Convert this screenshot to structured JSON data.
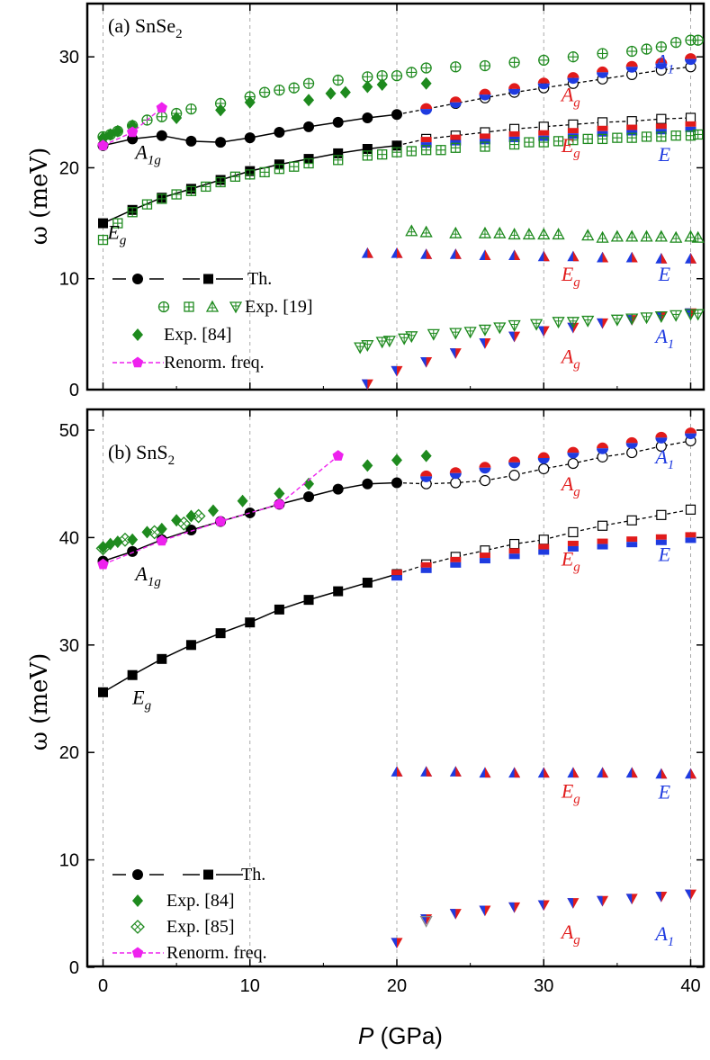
{
  "figure": {
    "x_axis_label_main": "P",
    "x_axis_label_unit": " (GPa)"
  },
  "chart_data": [
    {
      "type": "scatter",
      "title": "(a) SnSe",
      "title_sub": "2",
      "ylabel": "ω (meV)",
      "xlim": [
        -1,
        41
      ],
      "ylim": [
        0,
        35
      ],
      "xticks": [
        0,
        10,
        20,
        30,
        40
      ],
      "yticks": [
        0,
        10,
        20,
        30
      ],
      "grid": "vertical dashed at x=0,10,20,30,40",
      "legend": {
        "position": "lower-left",
        "entries": [
          {
            "label": "Th."
          },
          {
            "label": "Exp. [19]"
          },
          {
            "label": "Exp. [84]"
          },
          {
            "label": "Renorm. freq."
          }
        ]
      },
      "mode_labels": [
        {
          "text": "A",
          "sub": "1g",
          "x": 2.2,
          "y": 20.8,
          "color": "#000000"
        },
        {
          "text": "E",
          "sub": "g",
          "x": 0.3,
          "y": 13.6,
          "color": "#000000"
        },
        {
          "text": "A",
          "sub": "g",
          "x": 31.2,
          "y": 26.0,
          "color": "#e11b1b"
        },
        {
          "text": "A",
          "sub": "1",
          "x": 37.6,
          "y": 29.0,
          "color": "#1f3be0"
        },
        {
          "text": "E",
          "sub": "g",
          "x": 31.2,
          "y": 21.4,
          "color": "#e11b1b"
        },
        {
          "text": "E",
          "sub": "",
          "x": 37.8,
          "y": 20.6,
          "color": "#1f3be0"
        },
        {
          "text": "E",
          "sub": "g",
          "x": 31.2,
          "y": 9.8,
          "color": "#e11b1b"
        },
        {
          "text": "E",
          "sub": "",
          "x": 37.8,
          "y": 9.8,
          "color": "#1f3be0"
        },
        {
          "text": "A",
          "sub": "g",
          "x": 31.2,
          "y": 2.4,
          "color": "#e11b1b"
        },
        {
          "text": "A",
          "sub": "1",
          "x": 37.6,
          "y": 4.2,
          "color": "#1f3be0"
        }
      ],
      "series": [
        {
          "kind": "th_circle_solid",
          "x": [
            0,
            2,
            4,
            6,
            8,
            10,
            12,
            14,
            16,
            18,
            20
          ],
          "y": [
            22.0,
            22.6,
            22.9,
            22.4,
            22.3,
            22.7,
            23.2,
            23.7,
            24.1,
            24.5,
            24.8
          ]
        },
        {
          "kind": "th_square_solid",
          "x": [
            0,
            2,
            4,
            6,
            8,
            10,
            12,
            14,
            16,
            18,
            20
          ],
          "y": [
            15.0,
            16.2,
            17.3,
            18.1,
            18.9,
            19.7,
            20.3,
            20.8,
            21.3,
            21.7,
            22.0
          ]
        },
        {
          "kind": "th_circle_dashed",
          "x": [
            22,
            24,
            26,
            28,
            30,
            32,
            34,
            36,
            38,
            40
          ],
          "y": [
            25.3,
            25.8,
            26.3,
            26.8,
            27.2,
            27.6,
            28.0,
            28.4,
            28.8,
            29.1
          ]
        },
        {
          "kind": "th_square_dashed",
          "x": [
            22,
            24,
            26,
            28,
            30,
            32,
            34,
            36,
            38,
            40
          ],
          "y": [
            22.6,
            22.9,
            23.2,
            23.5,
            23.7,
            23.9,
            24.1,
            24.2,
            24.4,
            24.5
          ]
        },
        {
          "kind": "circle_rb",
          "x": [
            22,
            24,
            26,
            28,
            30,
            32,
            34,
            36,
            38,
            40
          ],
          "y": [
            25.3,
            25.9,
            26.6,
            27.1,
            27.6,
            28.1,
            28.6,
            29.1,
            29.4,
            29.8
          ]
        },
        {
          "kind": "square_rb",
          "x": [
            22,
            24,
            26,
            28,
            30,
            32,
            34,
            36,
            38,
            40
          ],
          "y": [
            22.3,
            22.5,
            22.6,
            22.8,
            22.9,
            23.1,
            23.3,
            23.4,
            23.5,
            23.7
          ]
        },
        {
          "kind": "tri_up_rb",
          "x": [
            18,
            20,
            22,
            24,
            26,
            28,
            30,
            32,
            34,
            36,
            38,
            40
          ],
          "y": [
            12.3,
            12.3,
            12.2,
            12.2,
            12.1,
            12.1,
            12.0,
            12.0,
            11.9,
            11.9,
            11.8,
            11.8
          ]
        },
        {
          "kind": "tri_down_rb",
          "x": [
            18,
            20,
            22,
            24,
            26,
            28,
            30,
            32,
            34,
            36,
            38,
            40
          ],
          "y": [
            0.5,
            1.7,
            2.5,
            3.3,
            4.2,
            4.8,
            5.3,
            5.6,
            6.0,
            6.3,
            6.6,
            6.9
          ]
        },
        {
          "kind": "exp19_circle",
          "x": [
            0,
            0.5,
            1,
            2,
            3,
            4,
            5,
            6,
            8,
            10,
            11,
            12,
            13,
            14,
            16,
            18,
            19,
            20,
            21,
            22,
            24,
            26,
            28,
            30,
            32,
            34,
            36,
            37,
            38,
            39,
            40,
            40.5
          ],
          "y": [
            22.8,
            23.0,
            23.3,
            23.8,
            24.3,
            24.6,
            24.9,
            25.3,
            25.8,
            26.4,
            26.8,
            27.0,
            27.2,
            27.6,
            27.9,
            28.2,
            28.3,
            28.3,
            28.6,
            29.0,
            29.1,
            29.2,
            29.5,
            29.7,
            30.0,
            30.3,
            30.5,
            30.7,
            30.9,
            31.3,
            31.5,
            31.5
          ]
        },
        {
          "kind": "exp19_square",
          "x": [
            0,
            1,
            2,
            3,
            4,
            5,
            6,
            7,
            8,
            9,
            10,
            11,
            12,
            13,
            14,
            16,
            18,
            19,
            20,
            21,
            22,
            23,
            24,
            26,
            28,
            29,
            30,
            31,
            32,
            33,
            34,
            35,
            36,
            37,
            38,
            39,
            40,
            40.5
          ],
          "y": [
            13.5,
            15.0,
            16.0,
            16.7,
            17.2,
            17.6,
            17.9,
            18.3,
            18.7,
            19.2,
            19.4,
            19.6,
            19.9,
            20.1,
            20.4,
            20.7,
            21.1,
            21.2,
            21.4,
            21.5,
            21.6,
            21.6,
            21.8,
            21.9,
            22.1,
            22.3,
            22.3,
            22.4,
            22.5,
            22.6,
            22.6,
            22.7,
            22.7,
            22.8,
            22.8,
            22.9,
            22.9,
            23.0
          ]
        },
        {
          "kind": "exp19_tri_up",
          "x": [
            21,
            22,
            24,
            26,
            27,
            28,
            29,
            30,
            31,
            33,
            34,
            35,
            36,
            37,
            38,
            39,
            40,
            40.5
          ],
          "y": [
            14.3,
            14.2,
            14.1,
            14.1,
            14.1,
            14.0,
            14.0,
            14.0,
            14.0,
            13.9,
            13.7,
            13.8,
            13.8,
            13.8,
            13.8,
            13.7,
            13.8,
            13.7
          ]
        },
        {
          "kind": "exp19_tri_down",
          "x": [
            17.5,
            18,
            19,
            19.5,
            20.5,
            21,
            22.5,
            24,
            25,
            26,
            27,
            28,
            29.5,
            31,
            32,
            33,
            35,
            36,
            37,
            38,
            39,
            40,
            40.5
          ],
          "y": [
            3.8,
            4.0,
            4.3,
            4.4,
            4.6,
            4.8,
            5.0,
            5.1,
            5.2,
            5.4,
            5.6,
            5.8,
            5.9,
            6.1,
            6.1,
            6.2,
            6.3,
            6.4,
            6.5,
            6.6,
            6.7,
            6.8,
            6.8
          ]
        },
        {
          "kind": "exp84_diamond",
          "x": [
            0,
            0.5,
            1,
            2,
            5,
            8,
            10,
            14,
            15.5,
            16.5,
            18,
            19,
            22
          ],
          "y": [
            22.7,
            23.0,
            23.3,
            23.8,
            24.5,
            25.2,
            25.9,
            26.1,
            26.7,
            26.8,
            27.3,
            27.5,
            27.6
          ]
        },
        {
          "kind": "renorm",
          "x": [
            0,
            2,
            4
          ],
          "y": [
            22.0,
            23.2,
            25.4
          ]
        }
      ]
    },
    {
      "type": "scatter",
      "title": "(b) SnS",
      "title_sub": "2",
      "ylabel": "ω (meV)",
      "xlim": [
        -1,
        41
      ],
      "ylim": [
        0,
        50
      ],
      "xticks": [
        0,
        10,
        20,
        30,
        40
      ],
      "yticks": [
        0,
        10,
        20,
        30,
        40,
        50
      ],
      "grid": "vertical dashed at x=0,10,20,30,40",
      "legend": {
        "position": "lower-left",
        "entries": [
          {
            "label": "Th."
          },
          {
            "label": "Exp. [84]"
          },
          {
            "label": "Exp. [85]"
          },
          {
            "label": "Renorm. freq."
          }
        ]
      },
      "mode_labels": [
        {
          "text": "A",
          "sub": "1g",
          "x": 2.2,
          "y": 36.0,
          "color": "#000000"
        },
        {
          "text": "E",
          "sub": "g",
          "x": 2.0,
          "y": 24.5,
          "color": "#000000"
        },
        {
          "text": "A",
          "sub": "g",
          "x": 31.2,
          "y": 44.4,
          "color": "#e11b1b"
        },
        {
          "text": "A",
          "sub": "1",
          "x": 37.6,
          "y": 46.9,
          "color": "#1f3be0"
        },
        {
          "text": "E",
          "sub": "g",
          "x": 31.2,
          "y": 37.4,
          "color": "#e11b1b"
        },
        {
          "text": "E",
          "sub": "",
          "x": 37.8,
          "y": 37.8,
          "color": "#1f3be0"
        },
        {
          "text": "E",
          "sub": "g",
          "x": 31.2,
          "y": 15.8,
          "color": "#e11b1b"
        },
        {
          "text": "E",
          "sub": "",
          "x": 37.8,
          "y": 15.7,
          "color": "#1f3be0"
        },
        {
          "text": "A",
          "sub": "g",
          "x": 31.2,
          "y": 2.7,
          "color": "#e11b1b"
        },
        {
          "text": "A",
          "sub": "1",
          "x": 37.6,
          "y": 2.5,
          "color": "#1f3be0"
        }
      ],
      "series": [
        {
          "kind": "th_circle_solid",
          "x": [
            0,
            2,
            4,
            6,
            8,
            10,
            12,
            14,
            16,
            18,
            20
          ],
          "y": [
            37.8,
            38.7,
            39.8,
            40.7,
            41.5,
            42.3,
            43.1,
            43.8,
            44.5,
            45.0,
            45.1
          ]
        },
        {
          "kind": "th_square_solid",
          "x": [
            0,
            2,
            4,
            6,
            8,
            10,
            12,
            14,
            16,
            18,
            20
          ],
          "y": [
            25.6,
            27.2,
            28.7,
            30.0,
            31.1,
            32.1,
            33.3,
            34.2,
            35.0,
            35.8,
            36.6
          ]
        },
        {
          "kind": "th_circle_dashed",
          "x": [
            22,
            24,
            26,
            28,
            30,
            32,
            34,
            36,
            38,
            40
          ],
          "y": [
            45.0,
            45.1,
            45.3,
            45.8,
            46.4,
            46.9,
            47.5,
            47.9,
            48.5,
            49.0
          ]
        },
        {
          "kind": "th_square_dashed",
          "x": [
            22,
            24,
            26,
            28,
            30,
            32,
            34,
            36,
            38,
            40
          ],
          "y": [
            37.5,
            38.2,
            38.8,
            39.4,
            39.8,
            40.5,
            41.1,
            41.6,
            42.1,
            42.6
          ]
        },
        {
          "kind": "circle_rb",
          "x": [
            22,
            24,
            26,
            28,
            30,
            32,
            34,
            36,
            38,
            40
          ],
          "y": [
            45.7,
            46.0,
            46.5,
            47.0,
            47.4,
            47.9,
            48.3,
            48.8,
            49.3,
            49.7
          ]
        },
        {
          "kind": "square_rb",
          "x": [
            20,
            22,
            24,
            26,
            28,
            30,
            32,
            34,
            36,
            38,
            40
          ],
          "y": [
            36.5,
            37.2,
            37.7,
            38.1,
            38.5,
            38.9,
            39.2,
            39.4,
            39.6,
            39.8,
            40.0
          ]
        },
        {
          "kind": "tri_up_rb",
          "x": [
            20,
            22,
            24,
            26,
            28,
            30,
            32,
            34,
            36,
            38,
            40
          ],
          "y": [
            18.2,
            18.2,
            18.2,
            18.1,
            18.1,
            18.1,
            18.1,
            18.1,
            18.1,
            18.0,
            18.0
          ]
        },
        {
          "kind": "tri_down_rb",
          "x": [
            20,
            22,
            24,
            26,
            28,
            30,
            32,
            34,
            36,
            38,
            40
          ],
          "y": [
            2.3,
            4.5,
            5.0,
            5.3,
            5.6,
            5.8,
            6.0,
            6.2,
            6.4,
            6.6,
            6.8
          ]
        },
        {
          "kind": "exp84_diamond",
          "x": [
            0,
            0.5,
            1,
            2,
            3,
            4,
            5,
            6,
            7.5,
            9.5,
            12,
            14,
            18,
            20,
            22
          ],
          "y": [
            39.1,
            39.4,
            39.6,
            39.8,
            40.5,
            40.8,
            41.6,
            42.0,
            42.5,
            43.4,
            44.1,
            45.0,
            46.7,
            47.2,
            47.6
          ]
        },
        {
          "kind": "exp85_xsq",
          "x": [
            0,
            1.5,
            3.5,
            5.5,
            6.5
          ],
          "y": [
            39.0,
            39.8,
            40.5,
            41.3,
            42.0
          ]
        },
        {
          "kind": "exp85_xsq_hollow_tri",
          "x": [
            22
          ],
          "y": [
            4.3
          ]
        },
        {
          "kind": "renorm",
          "x": [
            0,
            4,
            8,
            12,
            16
          ],
          "y": [
            37.5,
            39.7,
            41.5,
            43.1,
            47.6
          ]
        }
      ]
    }
  ]
}
